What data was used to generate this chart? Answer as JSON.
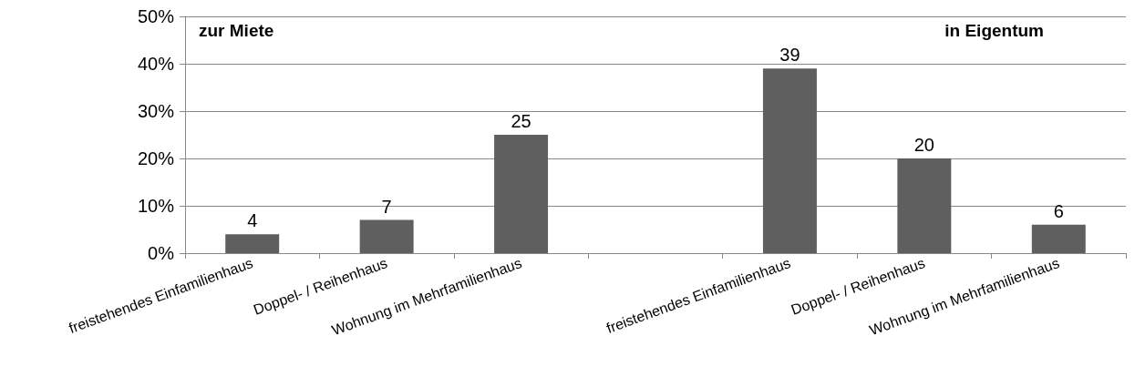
{
  "chart_data": {
    "type": "bar",
    "categories": [
      "freistehendes Einfamilienhaus",
      "Doppel- / Reihenhaus",
      "Wohnung im Mehrfamilienhaus",
      null,
      "freistehendes Einfamilienhaus",
      "Doppel- / Reihenhaus",
      "Wohnung im Mehrfamilienhaus"
    ],
    "values": [
      4,
      7,
      25,
      null,
      39,
      20,
      6
    ],
    "color": "#5f5f5f",
    "ylim": [
      0,
      50
    ],
    "yticks": [
      {
        "value": 0,
        "label": "0%"
      },
      {
        "value": 10,
        "label": "10%"
      },
      {
        "value": 20,
        "label": "20%"
      },
      {
        "value": 30,
        "label": "30%"
      },
      {
        "value": 40,
        "label": "40%"
      },
      {
        "value": 50,
        "label": "50%"
      }
    ],
    "grid": "y",
    "data_labels": true,
    "annotations": [
      "zur Miete",
      "in Eigentum"
    ]
  }
}
